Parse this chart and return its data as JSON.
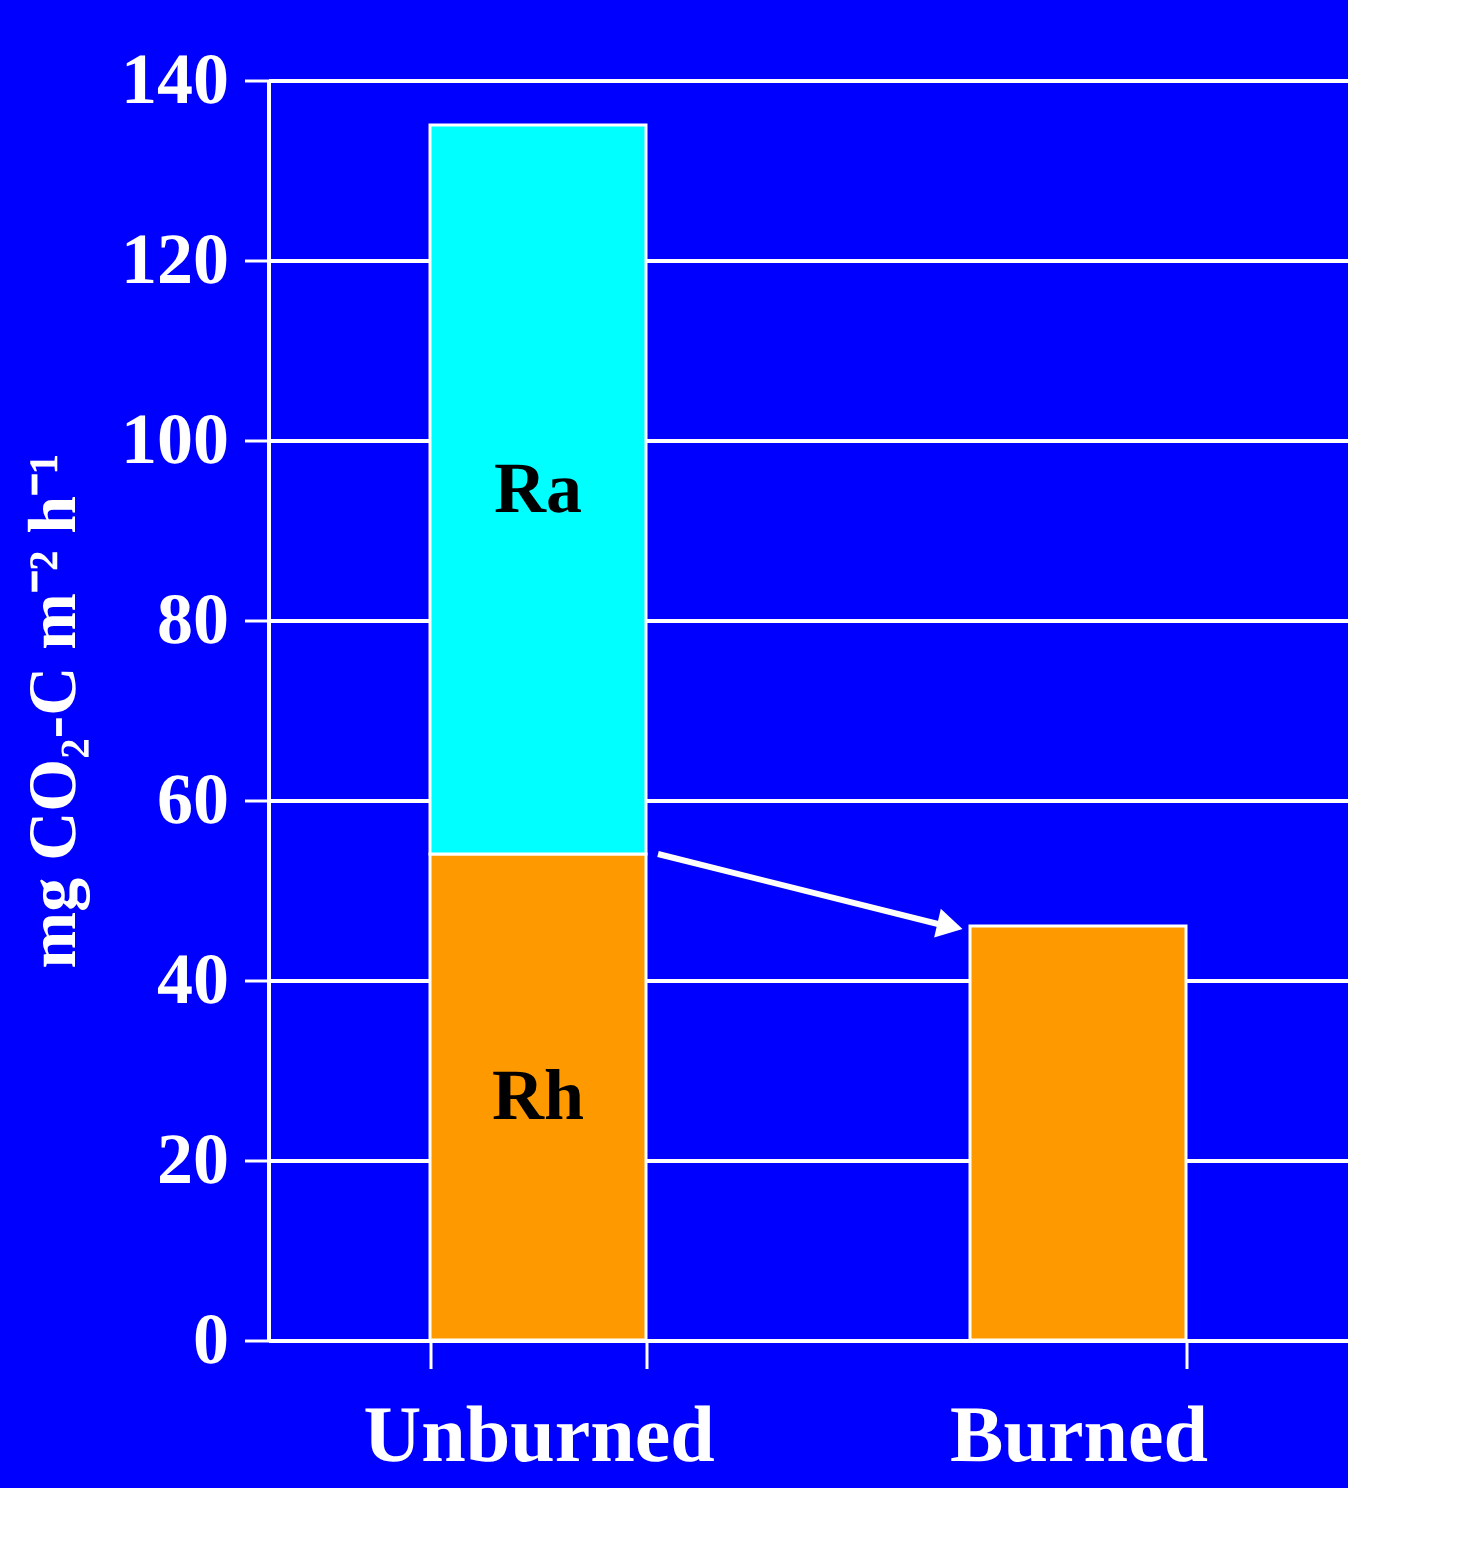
{
  "chart_data": {
    "type": "bar",
    "stacked": true,
    "categories": [
      "Unburned",
      "Burned"
    ],
    "series": [
      {
        "name": "Rh",
        "color": "#ff9900",
        "values": [
          54,
          46
        ]
      },
      {
        "name": "Ra",
        "color": "#00ffff",
        "values": [
          81,
          null
        ]
      }
    ],
    "ylabel": "mg CO₂-C m⁻² h⁻¹",
    "ylim": [
      0,
      140
    ],
    "yticks": [
      0,
      20,
      40,
      60,
      80,
      100,
      120,
      140
    ],
    "grid": "y"
  }
}
